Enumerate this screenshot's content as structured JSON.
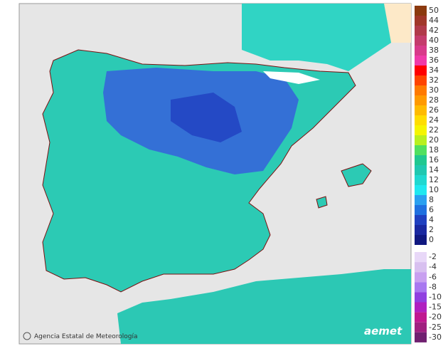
{
  "map": {
    "credit": "Agencia Estatal de Meteorología",
    "logo": "aemet"
  },
  "legend": {
    "positive": [
      {
        "value": 50,
        "color": "#8b3a0f"
      },
      {
        "value": 44,
        "color": "#a0372a"
      },
      {
        "value": 42,
        "color": "#b03a4a"
      },
      {
        "value": 40,
        "color": "#c43c6c"
      },
      {
        "value": 38,
        "color": "#d83a8a"
      },
      {
        "value": 36,
        "color": "#f03aa8"
      },
      {
        "value": 34,
        "color": "#ff0000"
      },
      {
        "value": 32,
        "color": "#ff4400"
      },
      {
        "value": 30,
        "color": "#ff7a00"
      },
      {
        "value": 28,
        "color": "#ff9a00"
      },
      {
        "value": 26,
        "color": "#ffbb00"
      },
      {
        "value": 24,
        "color": "#ffdd00"
      },
      {
        "value": 22,
        "color": "#f5f500"
      },
      {
        "value": 20,
        "color": "#b8f020"
      },
      {
        "value": 18,
        "color": "#50e060"
      },
      {
        "value": 16,
        "color": "#20c890"
      },
      {
        "value": 14,
        "color": "#20c8b0"
      },
      {
        "value": 12,
        "color": "#20d8d0"
      },
      {
        "value": 10,
        "color": "#20e8f0"
      },
      {
        "value": 8,
        "color": "#2aa0f0"
      },
      {
        "value": 6,
        "color": "#2070e0"
      },
      {
        "value": 4,
        "color": "#2040c0"
      },
      {
        "value": 2,
        "color": "#1a28a0"
      },
      {
        "value": 0,
        "color": "#101880"
      }
    ],
    "negative": [
      {
        "value": -2,
        "color": "#e8d8f8"
      },
      {
        "value": -4,
        "color": "#d8c0f0"
      },
      {
        "value": -6,
        "color": "#c8a0f0"
      },
      {
        "value": -8,
        "color": "#a878f0"
      },
      {
        "value": -10,
        "color": "#9040e0"
      },
      {
        "value": -15,
        "color": "#b020c0"
      },
      {
        "value": -20,
        "color": "#c01890"
      },
      {
        "value": -25,
        "color": "#a02080"
      },
      {
        "value": -30,
        "color": "#702070"
      }
    ]
  }
}
